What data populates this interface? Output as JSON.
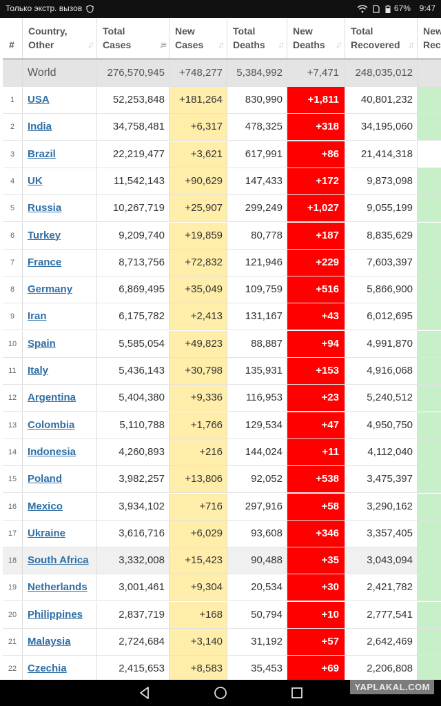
{
  "status_bar": {
    "left_text": "Только экстр. вызов",
    "battery": "67%",
    "time": "9:47"
  },
  "headers": {
    "num": "#",
    "country": [
      "Country,",
      "Other"
    ],
    "total_cases": [
      "Total",
      "Cases"
    ],
    "new_cases": [
      "New",
      "Cases"
    ],
    "total_deaths": [
      "Total",
      "Deaths"
    ],
    "new_deaths": [
      "New",
      "Deaths"
    ],
    "total_recovered": [
      "Total",
      "Recovered"
    ],
    "new_recovered": [
      "New",
      "Reco"
    ]
  },
  "world": {
    "country": "World",
    "total_cases": "276,570,945",
    "new_cases": "+748,277",
    "total_deaths": "5,384,992",
    "new_deaths": "+7,471",
    "total_recovered": "248,035,012"
  },
  "rows": [
    {
      "n": "1",
      "country": "USA",
      "tc": "52,253,848",
      "nc": "+181,264",
      "td": "830,990",
      "nd": "+1,811",
      "tr": "40,801,232"
    },
    {
      "n": "2",
      "country": "India",
      "tc": "34,758,481",
      "nc": "+6,317",
      "td": "478,325",
      "nd": "+318",
      "tr": "34,195,060"
    },
    {
      "n": "3",
      "country": "Brazil",
      "tc": "22,219,477",
      "nc": "+3,621",
      "td": "617,991",
      "nd": "+86",
      "tr": "21,414,318"
    },
    {
      "n": "4",
      "country": "UK",
      "tc": "11,542,143",
      "nc": "+90,629",
      "td": "147,433",
      "nd": "+172",
      "tr": "9,873,098"
    },
    {
      "n": "5",
      "country": "Russia",
      "tc": "10,267,719",
      "nc": "+25,907",
      "td": "299,249",
      "nd": "+1,027",
      "tr": "9,055,199"
    },
    {
      "n": "6",
      "country": "Turkey",
      "tc": "9,209,740",
      "nc": "+19,859",
      "td": "80,778",
      "nd": "+187",
      "tr": "8,835,629"
    },
    {
      "n": "7",
      "country": "France",
      "tc": "8,713,756",
      "nc": "+72,832",
      "td": "121,946",
      "nd": "+229",
      "tr": "7,603,397"
    },
    {
      "n": "8",
      "country": "Germany",
      "tc": "6,869,495",
      "nc": "+35,049",
      "td": "109,759",
      "nd": "+516",
      "tr": "5,866,900"
    },
    {
      "n": "9",
      "country": "Iran",
      "tc": "6,175,782",
      "nc": "+2,413",
      "td": "131,167",
      "nd": "+43",
      "tr": "6,012,695"
    },
    {
      "n": "10",
      "country": "Spain",
      "tc": "5,585,054",
      "nc": "+49,823",
      "td": "88,887",
      "nd": "+94",
      "tr": "4,991,870"
    },
    {
      "n": "11",
      "country": "Italy",
      "tc": "5,436,143",
      "nc": "+30,798",
      "td": "135,931",
      "nd": "+153",
      "tr": "4,916,068"
    },
    {
      "n": "12",
      "country": "Argentina",
      "tc": "5,404,380",
      "nc": "+9,336",
      "td": "116,953",
      "nd": "+23",
      "tr": "5,240,512"
    },
    {
      "n": "13",
      "country": "Colombia",
      "tc": "5,110,788",
      "nc": "+1,766",
      "td": "129,534",
      "nd": "+47",
      "tr": "4,950,750"
    },
    {
      "n": "14",
      "country": "Indonesia",
      "tc": "4,260,893",
      "nc": "+216",
      "td": "144,024",
      "nd": "+11",
      "tr": "4,112,040"
    },
    {
      "n": "15",
      "country": "Poland",
      "tc": "3,982,257",
      "nc": "+13,806",
      "td": "92,052",
      "nd": "+538",
      "tr": "3,475,397"
    },
    {
      "n": "16",
      "country": "Mexico",
      "tc": "3,934,102",
      "nc": "+716",
      "td": "297,916",
      "nd": "+58",
      "tr": "3,290,162"
    },
    {
      "n": "17",
      "country": "Ukraine",
      "tc": "3,616,716",
      "nc": "+6,029",
      "td": "93,608",
      "nd": "+346",
      "tr": "3,357,405"
    },
    {
      "n": "18",
      "country": "South Africa",
      "tc": "3,332,008",
      "nc": "+15,423",
      "td": "90,488",
      "nd": "+35",
      "tr": "3,043,094"
    },
    {
      "n": "19",
      "country": "Netherlands",
      "tc": "3,001,461",
      "nc": "+9,304",
      "td": "20,534",
      "nd": "+30",
      "tr": "2,421,782"
    },
    {
      "n": "20",
      "country": "Philippines",
      "tc": "2,837,719",
      "nc": "+168",
      "td": "50,794",
      "nd": "+10",
      "tr": "2,777,541"
    },
    {
      "n": "21",
      "country": "Malaysia",
      "tc": "2,724,684",
      "nc": "+3,140",
      "td": "31,192",
      "nd": "+57",
      "tr": "2,642,469"
    },
    {
      "n": "22",
      "country": "Czechia",
      "tc": "2,415,653",
      "nc": "+8,583",
      "td": "35,453",
      "nd": "+69",
      "tr": "2,206,808"
    }
  ],
  "colors": {
    "new_cases_bg": "#ffeeaa",
    "new_deaths_bg": "#ff0000",
    "new_recovered_bg": "#c8f0c8",
    "link": "#2f6fa7"
  },
  "watermark": "YAPLAKAL.COM"
}
